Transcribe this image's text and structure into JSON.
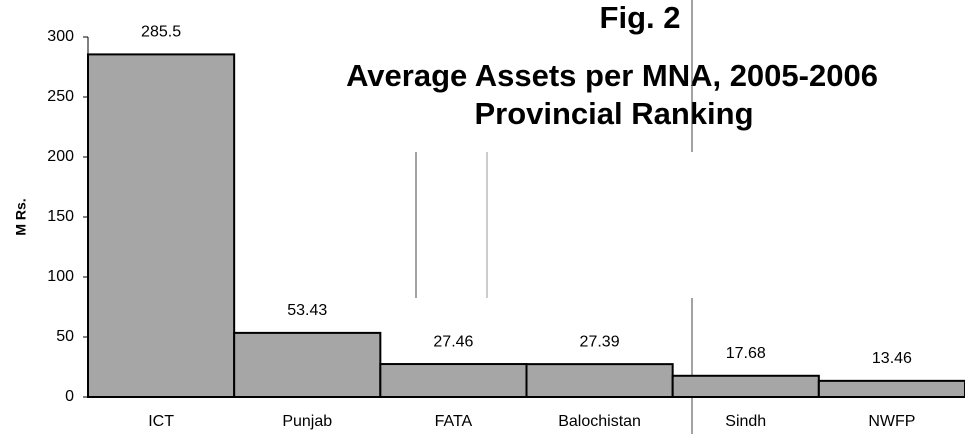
{
  "chart_data": {
    "type": "bar",
    "figure_label": "Fig. 2",
    "title": "Average Assets per MNA, 2005-2006",
    "subtitle": "Provincial Ranking",
    "y_label": "M Rs.",
    "categories": [
      "ICT",
      "Punjab",
      "FATA",
      "Balochistan",
      "Sindh",
      "NWFP"
    ],
    "values": [
      285.5,
      53.43,
      27.46,
      27.39,
      17.68,
      13.46
    ],
    "color": "#a6a6a6",
    "ylim": [
      0,
      300
    ],
    "yticks": [
      0,
      50,
      100,
      150,
      200,
      250,
      300
    ],
    "grid": false
  }
}
